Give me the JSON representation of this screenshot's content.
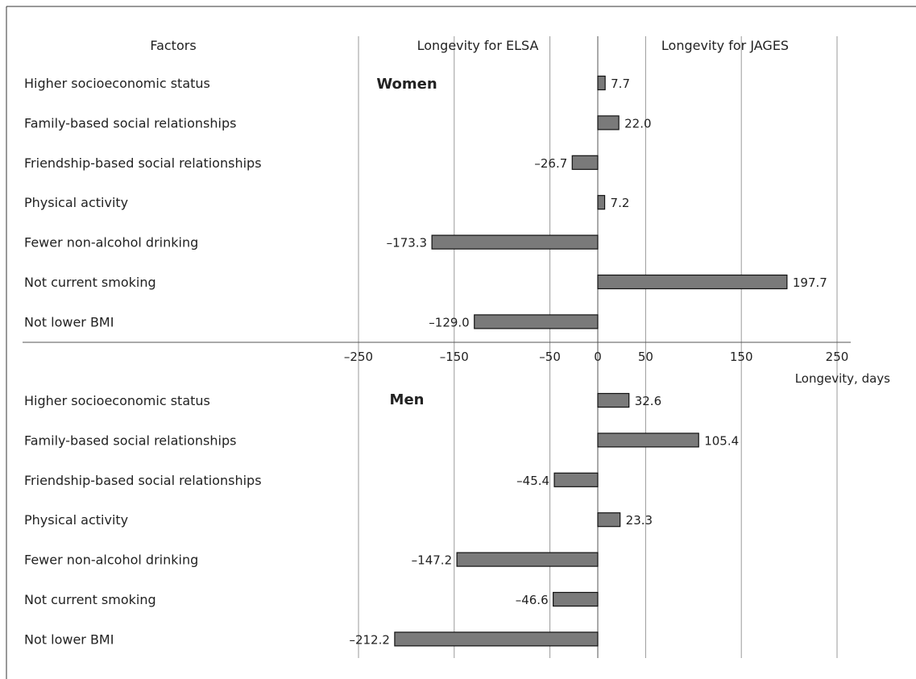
{
  "headers": {
    "factors": "Factors",
    "left": "Longevity for ELSA",
    "right": "Longevity for  JAGES"
  },
  "colors": {
    "bar": "#7a7a7a",
    "bar_stroke": "#111111"
  },
  "chart_data": {
    "type": "bar",
    "orientation": "horizontal",
    "xlabel": "Longevity, days",
    "xlim": [
      -250,
      250
    ],
    "xticks": [
      -250,
      -150,
      -50,
      0,
      50,
      150,
      250
    ],
    "xtick_labels": [
      "–250",
      "–150",
      "–50",
      "0",
      "50",
      "150",
      "250"
    ],
    "grid": true,
    "panels": [
      {
        "label": "Women",
        "categories": [
          "Higher socioeconomic status",
          "Family-based social relationships",
          "Friendship-based social relationships",
          "Physical activity",
          "Fewer non-alcohol drinking",
          "Not current smoking",
          "Not lower BMI"
        ],
        "values": [
          7.7,
          22.0,
          -26.7,
          7.2,
          -173.3,
          197.7,
          -129.0
        ],
        "value_labels": [
          "7.7",
          "22.0",
          "–26.7",
          "7.2",
          "–173.3",
          "197.7",
          "–129.0"
        ]
      },
      {
        "label": "Men",
        "categories": [
          "Higher socioeconomic status",
          "Family-based social relationships",
          "Friendship-based social relationships",
          "Physical activity",
          "Fewer non-alcohol drinking",
          "Not current smoking",
          "Not lower BMI"
        ],
        "values": [
          32.6,
          105.4,
          -45.4,
          23.3,
          -147.2,
          -46.6,
          -212.2
        ],
        "value_labels": [
          "32.6",
          "105.4",
          "–45.4",
          "23.3",
          "–147.2",
          "–46.6",
          "–212.2"
        ]
      }
    ]
  }
}
